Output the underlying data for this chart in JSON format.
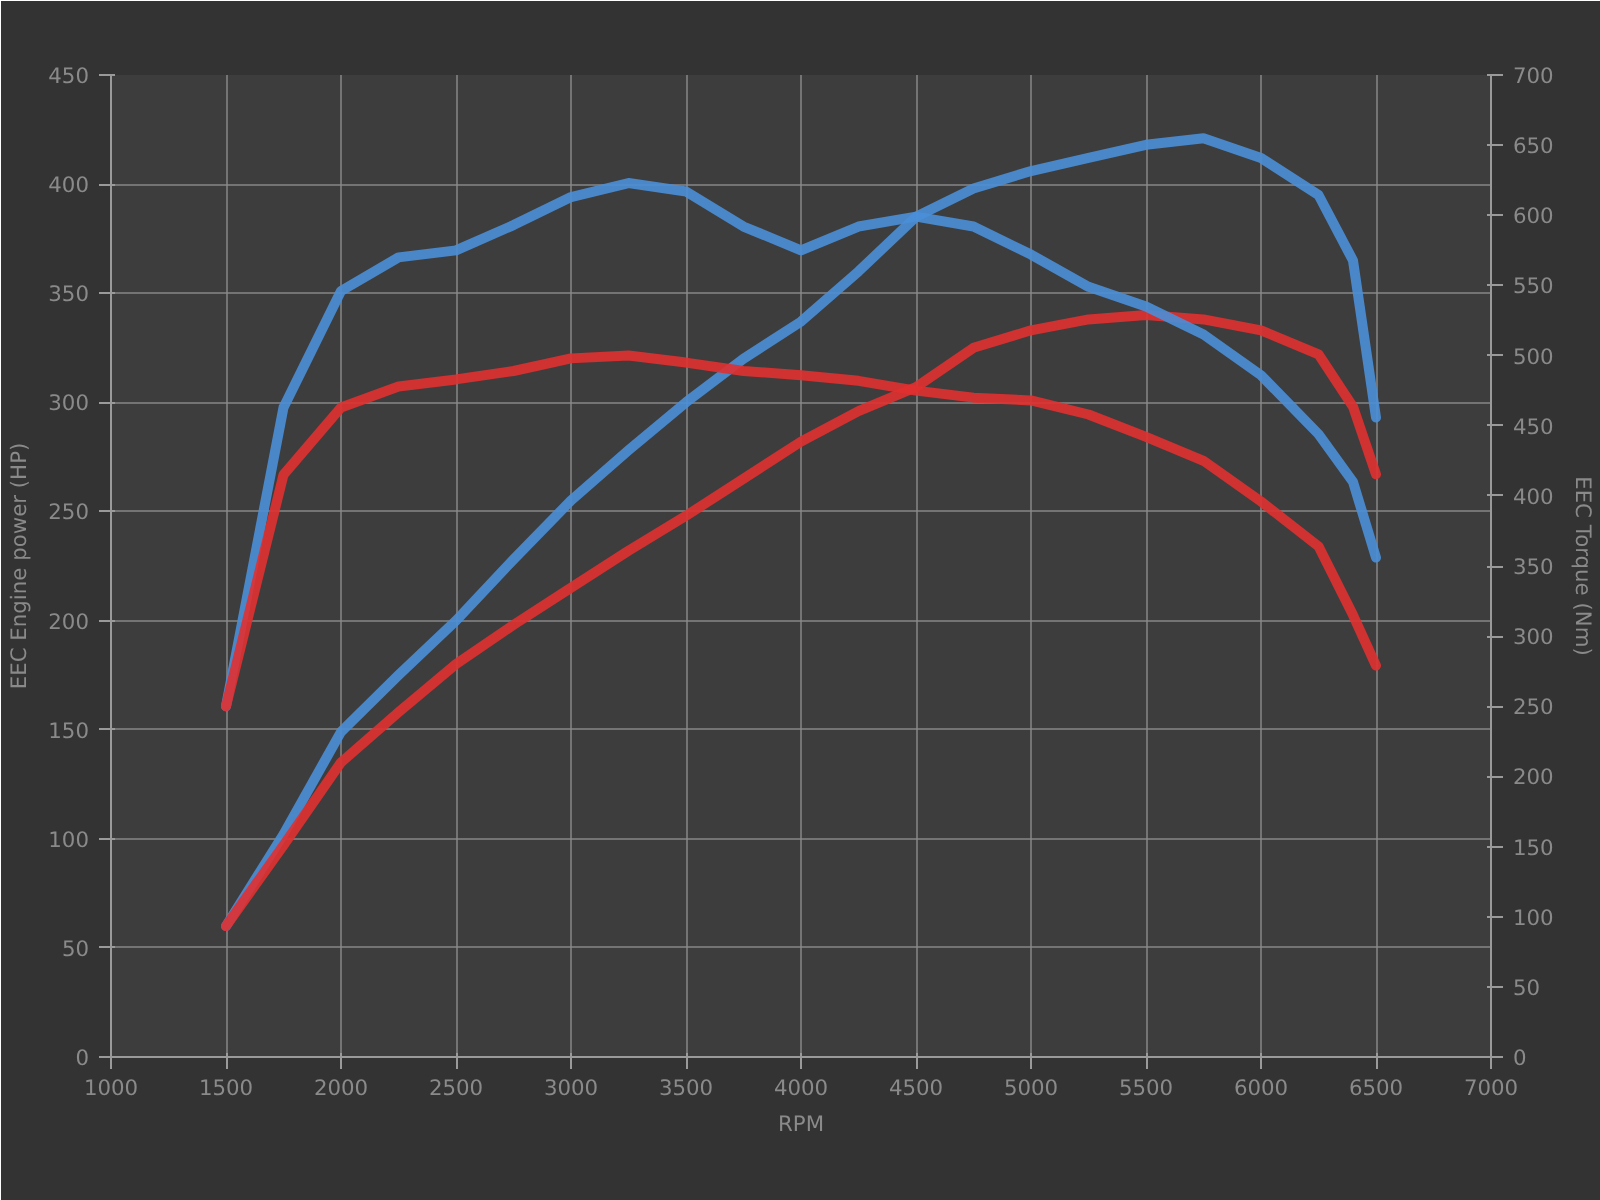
{
  "chart_data": {
    "type": "line",
    "xlabel": "RPM",
    "ylabel": "EEC Engine power (HP)",
    "y2label": "EEC Torque (Nm)",
    "x": [
      1500,
      1750,
      2000,
      2250,
      2500,
      2750,
      3000,
      3250,
      3500,
      3750,
      4000,
      4250,
      4500,
      4750,
      5000,
      5250,
      5500,
      5750,
      6000,
      6250,
      6400,
      6500
    ],
    "series": [
      {
        "color": "#4a8fd8",
        "values": [
          60,
          102,
          149,
          175,
          200,
          228,
          255,
          278,
          300,
          320,
          337,
          360,
          385,
          398,
          406,
          412,
          418,
          421,
          412,
          395,
          365,
          293
        ]
      },
      {
        "color": "#e03030",
        "values": [
          60,
          97,
          135,
          158,
          180,
          198,
          215,
          232,
          248,
          265,
          282,
          296,
          307,
          325,
          333,
          338,
          340,
          338,
          333,
          322,
          298,
          267
        ]
      },
      {
        "color": "#4a8fd8",
        "axis": "y2",
        "values": [
          250,
          463,
          546,
          570,
          575,
          593,
          613,
          623,
          617,
          592,
          575,
          592,
          599,
          592,
          572,
          549,
          535,
          515,
          486,
          444,
          410,
          356
        ]
      },
      {
        "color": "#e03030",
        "axis": "y2",
        "values": [
          250,
          415,
          463,
          478,
          483,
          489,
          498,
          500,
          495,
          489,
          486,
          482,
          475,
          470,
          468,
          458,
          442,
          425,
          396,
          364,
          315,
          279
        ]
      }
    ],
    "xlim": [
      1000,
      7000
    ],
    "xticks": [
      1000,
      1500,
      2000,
      2500,
      3000,
      3500,
      4000,
      4500,
      5000,
      5500,
      6000,
      6500,
      7000
    ],
    "ylim": [
      0,
      450
    ],
    "yticks": [
      0,
      50,
      100,
      150,
      200,
      250,
      300,
      350,
      400,
      450
    ],
    "y2lim": [
      0,
      700
    ],
    "y2ticks": [
      0,
      50,
      100,
      150,
      200,
      250,
      300,
      350,
      400,
      450,
      500,
      550,
      600,
      650,
      700
    ],
    "grid": true,
    "line_style": "solid"
  }
}
